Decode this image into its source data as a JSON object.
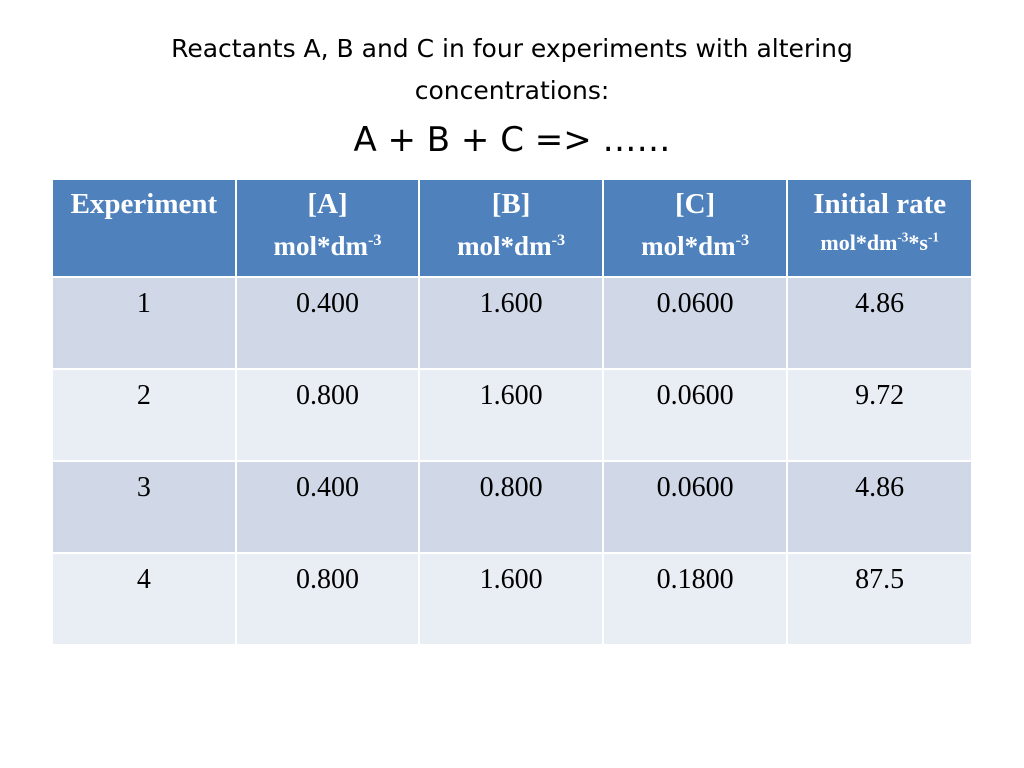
{
  "title": {
    "line1": "Reactants A, B and C in four experiments with altering",
    "line2": "concentrations:",
    "equation": "A + B + C => ……"
  },
  "table": {
    "headers": [
      {
        "label": "Experiment",
        "unit": "",
        "unit_sup": "",
        "unit_tail": "",
        "unit_sup2": ""
      },
      {
        "label": "[A]",
        "unit": "mol*dm",
        "unit_sup": "-3",
        "unit_tail": "",
        "unit_sup2": ""
      },
      {
        "label": "[B]",
        "unit": "mol*dm",
        "unit_sup": "-3",
        "unit_tail": "",
        "unit_sup2": ""
      },
      {
        "label": "[C]",
        "unit": "mol*dm",
        "unit_sup": "-3",
        "unit_tail": "",
        "unit_sup2": ""
      },
      {
        "label": "Initial rate",
        "unit": "mol*dm",
        "unit_sup": "-3",
        "unit_tail": "*s",
        "unit_sup2": "-1"
      }
    ],
    "rows": [
      [
        "1",
        "0.400",
        "1.600",
        "0.0600",
        "4.86"
      ],
      [
        "2",
        "0.800",
        "1.600",
        "0.0600",
        "9.72"
      ],
      [
        "3",
        "0.400",
        "0.800",
        "0.0600",
        "4.86"
      ],
      [
        "4",
        "0.800",
        "1.600",
        "0.1800",
        "87.5"
      ]
    ]
  },
  "colors": {
    "header_bg": "#4f81bd",
    "row_odd_bg": "#d0d8e8",
    "row_even_bg": "#e9edf4"
  }
}
